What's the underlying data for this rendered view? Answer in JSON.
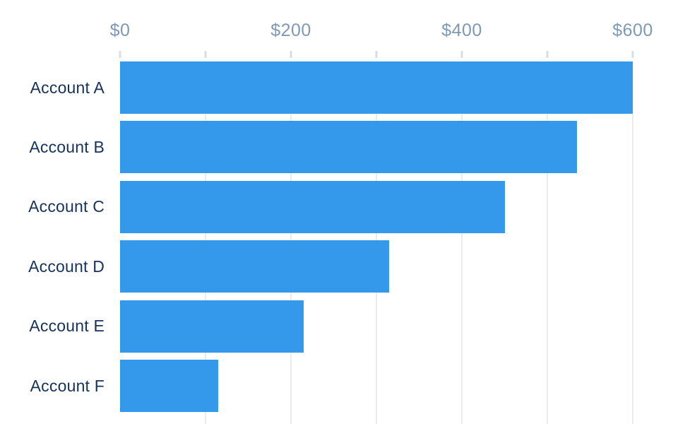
{
  "chart_data": {
    "type": "bar",
    "orientation": "horizontal",
    "title": "",
    "xlabel": "",
    "ylabel": "",
    "categories": [
      "Account A",
      "Account B",
      "Account C",
      "Account D",
      "Account E",
      "Account F"
    ],
    "values": [
      600,
      535,
      450,
      315,
      215,
      115
    ],
    "value_prefix": "$",
    "x_axis": {
      "min": 0,
      "max": 600,
      "minor_tick_step": 100,
      "labeled_tick_step": 200,
      "tick_labels": [
        "$0",
        "$200",
        "$400",
        "$600"
      ],
      "position": "top"
    },
    "grid": "vertical-only",
    "legend": "none"
  },
  "colors": {
    "bar": "#3499eb",
    "category_label": "#16325c",
    "axis_label": "#7e99b7",
    "tick_mark": "#d8dde6",
    "gridline": "#e9ebef",
    "background": "#ffffff"
  }
}
